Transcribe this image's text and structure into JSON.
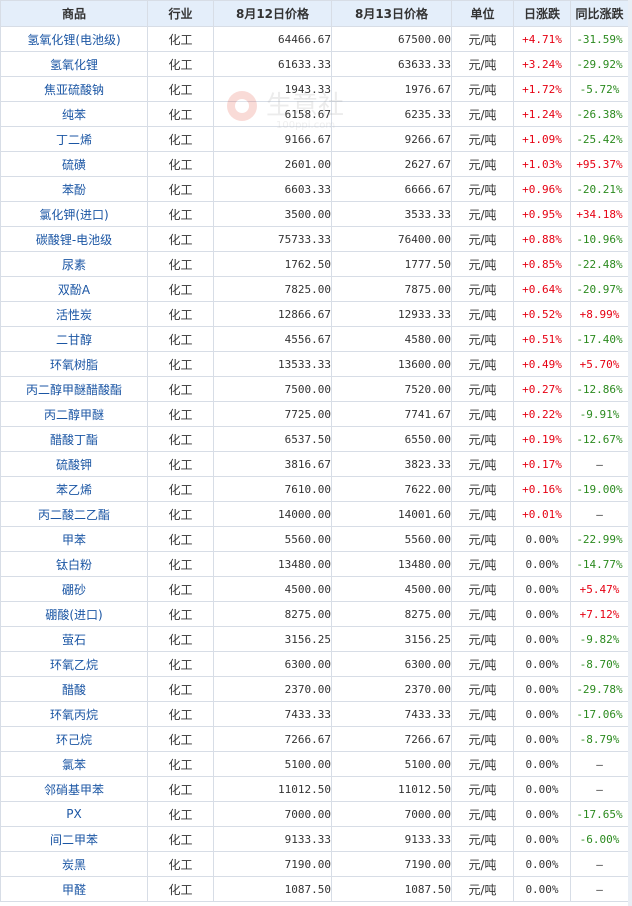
{
  "header": {
    "product": "商品",
    "industry": "行业",
    "price_prev": "8月12日价格",
    "price_curr": "8月13日价格",
    "unit": "单位",
    "day_change": "日涨跌",
    "yoy_change": "同比涨跌"
  },
  "watermark": {
    "brand": "生意社",
    "url": "100ppi.com"
  },
  "colors": {
    "header_bg": "#e4eefa",
    "up": "#e60012",
    "down": "#2b8a1e",
    "link": "#1b56a4"
  },
  "rows": [
    {
      "name": "氢氧化锂(电池级)",
      "industry": "化工",
      "p1": "64466.67",
      "p2": "67500.00",
      "unit": "元/吨",
      "day": "+4.71%",
      "yoy": "-31.59%",
      "dd": "up",
      "yd": "down"
    },
    {
      "name": "氢氧化锂",
      "industry": "化工",
      "p1": "61633.33",
      "p2": "63633.33",
      "unit": "元/吨",
      "day": "+3.24%",
      "yoy": "-29.92%",
      "dd": "up",
      "yd": "down"
    },
    {
      "name": "焦亚硫酸钠",
      "industry": "化工",
      "p1": "1943.33",
      "p2": "1976.67",
      "unit": "元/吨",
      "day": "+1.72%",
      "yoy": "-5.72%",
      "dd": "up",
      "yd": "down"
    },
    {
      "name": "纯苯",
      "industry": "化工",
      "p1": "6158.67",
      "p2": "6235.33",
      "unit": "元/吨",
      "day": "+1.24%",
      "yoy": "-26.38%",
      "dd": "up",
      "yd": "down"
    },
    {
      "name": "丁二烯",
      "industry": "化工",
      "p1": "9166.67",
      "p2": "9266.67",
      "unit": "元/吨",
      "day": "+1.09%",
      "yoy": "-25.42%",
      "dd": "up",
      "yd": "down"
    },
    {
      "name": "硫磺",
      "industry": "化工",
      "p1": "2601.00",
      "p2": "2627.67",
      "unit": "元/吨",
      "day": "+1.03%",
      "yoy": "+95.37%",
      "dd": "up",
      "yd": "up"
    },
    {
      "name": "苯酚",
      "industry": "化工",
      "p1": "6603.33",
      "p2": "6666.67",
      "unit": "元/吨",
      "day": "+0.96%",
      "yoy": "-20.21%",
      "dd": "up",
      "yd": "down"
    },
    {
      "name": "氯化钾(进口)",
      "industry": "化工",
      "p1": "3500.00",
      "p2": "3533.33",
      "unit": "元/吨",
      "day": "+0.95%",
      "yoy": "+34.18%",
      "dd": "up",
      "yd": "up"
    },
    {
      "name": "碳酸锂-电池级",
      "industry": "化工",
      "p1": "75733.33",
      "p2": "76400.00",
      "unit": "元/吨",
      "day": "+0.88%",
      "yoy": "-10.96%",
      "dd": "up",
      "yd": "down"
    },
    {
      "name": "尿素",
      "industry": "化工",
      "p1": "1762.50",
      "p2": "1777.50",
      "unit": "元/吨",
      "day": "+0.85%",
      "yoy": "-22.48%",
      "dd": "up",
      "yd": "down"
    },
    {
      "name": "双酚A",
      "industry": "化工",
      "p1": "7825.00",
      "p2": "7875.00",
      "unit": "元/吨",
      "day": "+0.64%",
      "yoy": "-20.97%",
      "dd": "up",
      "yd": "down"
    },
    {
      "name": "活性炭",
      "industry": "化工",
      "p1": "12866.67",
      "p2": "12933.33",
      "unit": "元/吨",
      "day": "+0.52%",
      "yoy": "+8.99%",
      "dd": "up",
      "yd": "up"
    },
    {
      "name": "二甘醇",
      "industry": "化工",
      "p1": "4556.67",
      "p2": "4580.00",
      "unit": "元/吨",
      "day": "+0.51%",
      "yoy": "-17.40%",
      "dd": "up",
      "yd": "down"
    },
    {
      "name": "环氧树脂",
      "industry": "化工",
      "p1": "13533.33",
      "p2": "13600.00",
      "unit": "元/吨",
      "day": "+0.49%",
      "yoy": "+5.70%",
      "dd": "up",
      "yd": "up"
    },
    {
      "name": "丙二醇甲醚醋酸酯",
      "industry": "化工",
      "p1": "7500.00",
      "p2": "7520.00",
      "unit": "元/吨",
      "day": "+0.27%",
      "yoy": "-12.86%",
      "dd": "up",
      "yd": "down"
    },
    {
      "name": "丙二醇甲醚",
      "industry": "化工",
      "p1": "7725.00",
      "p2": "7741.67",
      "unit": "元/吨",
      "day": "+0.22%",
      "yoy": "-9.91%",
      "dd": "up",
      "yd": "down"
    },
    {
      "name": "醋酸丁酯",
      "industry": "化工",
      "p1": "6537.50",
      "p2": "6550.00",
      "unit": "元/吨",
      "day": "+0.19%",
      "yoy": "-12.67%",
      "dd": "up",
      "yd": "down"
    },
    {
      "name": "硫酸钾",
      "industry": "化工",
      "p1": "3816.67",
      "p2": "3823.33",
      "unit": "元/吨",
      "day": "+0.17%",
      "yoy": "—",
      "dd": "up",
      "yd": "flat"
    },
    {
      "name": "苯乙烯",
      "industry": "化工",
      "p1": "7610.00",
      "p2": "7622.00",
      "unit": "元/吨",
      "day": "+0.16%",
      "yoy": "-19.00%",
      "dd": "up",
      "yd": "down"
    },
    {
      "name": "丙二酸二乙酯",
      "industry": "化工",
      "p1": "14000.00",
      "p2": "14001.60",
      "unit": "元/吨",
      "day": "+0.01%",
      "yoy": "—",
      "dd": "up",
      "yd": "flat"
    },
    {
      "name": "甲苯",
      "industry": "化工",
      "p1": "5560.00",
      "p2": "5560.00",
      "unit": "元/吨",
      "day": "0.00%",
      "yoy": "-22.99%",
      "dd": "flat",
      "yd": "down"
    },
    {
      "name": "钛白粉",
      "industry": "化工",
      "p1": "13480.00",
      "p2": "13480.00",
      "unit": "元/吨",
      "day": "0.00%",
      "yoy": "-14.77%",
      "dd": "flat",
      "yd": "down"
    },
    {
      "name": "硼砂",
      "industry": "化工",
      "p1": "4500.00",
      "p2": "4500.00",
      "unit": "元/吨",
      "day": "0.00%",
      "yoy": "+5.47%",
      "dd": "flat",
      "yd": "up"
    },
    {
      "name": "硼酸(进口)",
      "industry": "化工",
      "p1": "8275.00",
      "p2": "8275.00",
      "unit": "元/吨",
      "day": "0.00%",
      "yoy": "+7.12%",
      "dd": "flat",
      "yd": "up"
    },
    {
      "name": "萤石",
      "industry": "化工",
      "p1": "3156.25",
      "p2": "3156.25",
      "unit": "元/吨",
      "day": "0.00%",
      "yoy": "-9.82%",
      "dd": "flat",
      "yd": "down"
    },
    {
      "name": "环氧乙烷",
      "industry": "化工",
      "p1": "6300.00",
      "p2": "6300.00",
      "unit": "元/吨",
      "day": "0.00%",
      "yoy": "-8.70%",
      "dd": "flat",
      "yd": "down"
    },
    {
      "name": "醋酸",
      "industry": "化工",
      "p1": "2370.00",
      "p2": "2370.00",
      "unit": "元/吨",
      "day": "0.00%",
      "yoy": "-29.78%",
      "dd": "flat",
      "yd": "down"
    },
    {
      "name": "环氧丙烷",
      "industry": "化工",
      "p1": "7433.33",
      "p2": "7433.33",
      "unit": "元/吨",
      "day": "0.00%",
      "yoy": "-17.06%",
      "dd": "flat",
      "yd": "down"
    },
    {
      "name": "环己烷",
      "industry": "化工",
      "p1": "7266.67",
      "p2": "7266.67",
      "unit": "元/吨",
      "day": "0.00%",
      "yoy": "-8.79%",
      "dd": "flat",
      "yd": "down"
    },
    {
      "name": "氯苯",
      "industry": "化工",
      "p1": "5100.00",
      "p2": "5100.00",
      "unit": "元/吨",
      "day": "0.00%",
      "yoy": "—",
      "dd": "flat",
      "yd": "flat"
    },
    {
      "name": "邻硝基甲苯",
      "industry": "化工",
      "p1": "11012.50",
      "p2": "11012.50",
      "unit": "元/吨",
      "day": "0.00%",
      "yoy": "—",
      "dd": "flat",
      "yd": "flat"
    },
    {
      "name": "PX",
      "industry": "化工",
      "p1": "7000.00",
      "p2": "7000.00",
      "unit": "元/吨",
      "day": "0.00%",
      "yoy": "-17.65%",
      "dd": "flat",
      "yd": "down"
    },
    {
      "name": "间二甲苯",
      "industry": "化工",
      "p1": "9133.33",
      "p2": "9133.33",
      "unit": "元/吨",
      "day": "0.00%",
      "yoy": "-6.00%",
      "dd": "flat",
      "yd": "down"
    },
    {
      "name": "炭黑",
      "industry": "化工",
      "p1": "7190.00",
      "p2": "7190.00",
      "unit": "元/吨",
      "day": "0.00%",
      "yoy": "—",
      "dd": "flat",
      "yd": "flat"
    },
    {
      "name": "甲醛",
      "industry": "化工",
      "p1": "1087.50",
      "p2": "1087.50",
      "unit": "元/吨",
      "day": "0.00%",
      "yoy": "—",
      "dd": "flat",
      "yd": "flat"
    }
  ]
}
